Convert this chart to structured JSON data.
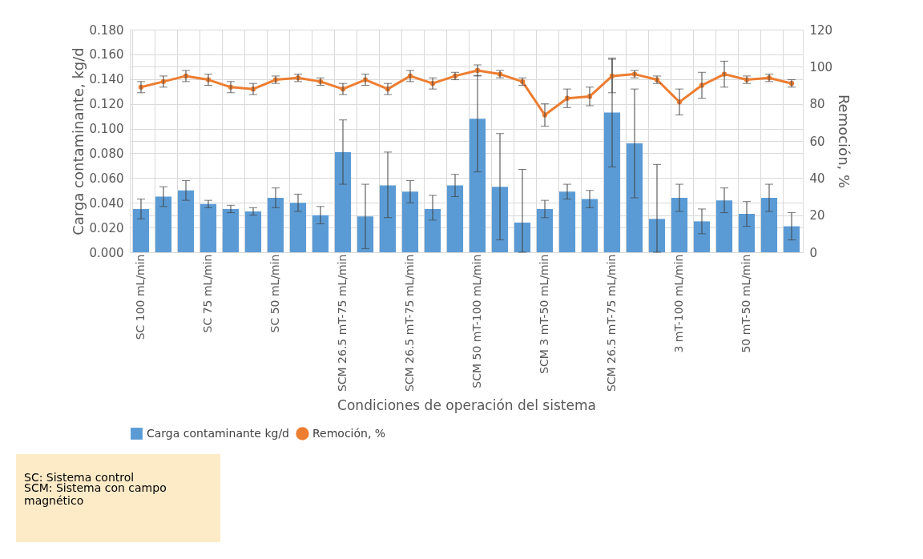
{
  "chart_data": {
    "type": "bar",
    "xlabel": "Condiciones de operación del sistema",
    "ylabel": "Carga contaminante, kg/d",
    "y2label": "Remoción, %",
    "categories": [
      "SC 100 mL/min",
      null,
      null,
      "SC 75 mL/min",
      null,
      null,
      "SC 50 mL/min",
      null,
      null,
      "SCM 26.5 mT-75 mL/min",
      null,
      null,
      "SCM 26.5 mT-75 mL/min",
      null,
      null,
      "SCM 50 mT-100 mL/min",
      null,
      null,
      "SCM 3 mT-50 mL/min",
      null,
      null,
      "SCM 26.5 mT-75 mL/min",
      null,
      null,
      "3 mT-100 mL/min",
      null,
      null,
      "50 mT-50 mL/min",
      null,
      null
    ],
    "series": [
      {
        "name": "Carga contaminante kg/d",
        "type": "bar",
        "color": "#5b9bd5",
        "values": [
          0.035,
          0.045,
          0.05,
          0.039,
          0.035,
          0.033,
          0.044,
          0.04,
          0.03,
          0.081,
          0.029,
          0.054,
          0.049,
          0.035,
          0.054,
          0.108,
          0.053,
          0.024,
          0.035,
          0.049,
          0.043,
          0.113,
          0.088,
          0.027,
          0.044,
          0.025,
          0.042,
          0.031,
          0.044,
          0.021
        ],
        "errors": [
          [
            0.027,
            0.043
          ],
          [
            0.037,
            0.053
          ],
          [
            0.042,
            0.058
          ],
          [
            0.036,
            0.042
          ],
          [
            0.032,
            0.038
          ],
          [
            0.03,
            0.036
          ],
          [
            0.036,
            0.052
          ],
          [
            0.033,
            0.047
          ],
          [
            0.023,
            0.037
          ],
          [
            0.055,
            0.107
          ],
          [
            0.003,
            0.055
          ],
          [
            0.028,
            0.081
          ],
          [
            0.04,
            0.058
          ],
          [
            0.026,
            0.046
          ],
          [
            0.045,
            0.063
          ],
          [
            0.065,
            0.143
          ],
          [
            0.01,
            0.096
          ],
          [
            0.0,
            0.067
          ],
          [
            0.028,
            0.042
          ],
          [
            0.043,
            0.055
          ],
          [
            0.036,
            0.05
          ],
          [
            0.069,
            0.157
          ],
          [
            0.044,
            0.132
          ],
          [
            0.0,
            0.071
          ],
          [
            0.033,
            0.055
          ],
          [
            0.015,
            0.035
          ],
          [
            0.032,
            0.052
          ],
          [
            0.021,
            0.041
          ],
          [
            0.033,
            0.055
          ],
          [
            0.01,
            0.032
          ]
        ]
      },
      {
        "name": "Remoción, %",
        "type": "line",
        "axis": "y2",
        "color": "#ed7d31",
        "values": [
          89,
          92,
          95,
          93,
          89,
          88,
          93,
          94,
          92,
          88,
          93,
          88,
          95,
          91,
          95,
          98,
          96,
          92,
          74,
          83,
          84,
          95,
          96,
          93,
          81,
          90,
          96,
          93,
          94,
          91
        ],
        "errors": [
          3,
          3,
          3,
          3,
          3,
          3,
          2,
          2,
          2,
          3,
          3,
          3,
          3,
          3,
          2,
          3,
          2,
          2,
          6,
          5,
          5,
          9,
          2,
          2,
          7,
          7,
          7,
          2,
          2,
          2
        ]
      }
    ],
    "ylim": [
      0,
      0.18
    ],
    "yticks": [
      {
        "value": 0,
        "label": "0.000"
      },
      {
        "value": 0.02,
        "label": "0.020"
      },
      {
        "value": 0.04,
        "label": "0.040"
      },
      {
        "value": 0.06,
        "label": "0.060"
      },
      {
        "value": 0.08,
        "label": "0.080"
      },
      {
        "value": 0.1,
        "label": "0.100"
      },
      {
        "value": 0.12,
        "label": "0.120"
      },
      {
        "value": 0.14,
        "label": "0.140"
      },
      {
        "value": 0.16,
        "label": "0.160"
      },
      {
        "value": 0.18,
        "label": "0.180"
      }
    ],
    "y2lim": [
      0,
      120
    ],
    "y2ticks": [
      0,
      20,
      40,
      60,
      80,
      100,
      120
    ],
    "annotations": [
      "SC: Sistema control",
      "SCM: Sistema con campo magnético"
    ],
    "grid": true,
    "legend": "bottom",
    "marker": "circle",
    "line_style": "solid"
  }
}
